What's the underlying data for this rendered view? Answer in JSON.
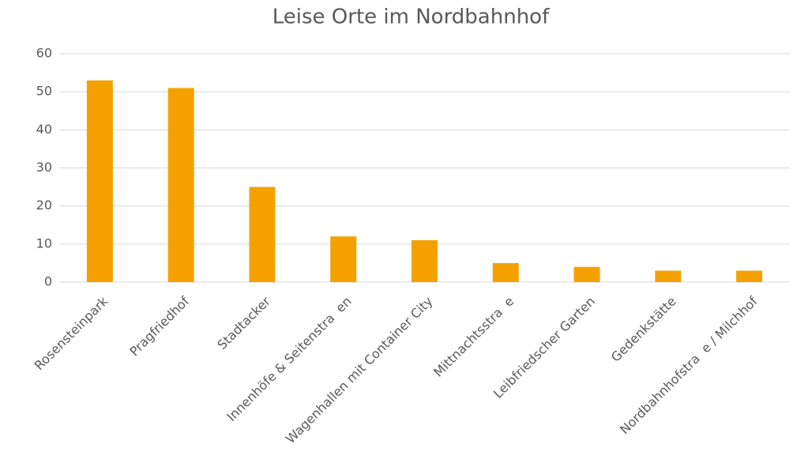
{
  "chart_data": {
    "type": "bar",
    "title": "Leise Orte im Nordbahnhof",
    "categories": [
      "Rosensteinpark",
      "Pragfriedhof",
      "Stadtacker",
      "Innenhöfe & Seitenstra  en",
      "Wagenhallen mit Container City",
      "Mittnachtsstra  e",
      "Leibfriedscher Garten",
      "Gedenkstätte",
      "Nordbahnhofstra  e / Milchhof"
    ],
    "values": [
      53,
      51,
      25,
      12,
      11,
      5,
      4,
      3,
      3
    ],
    "color": "#f4a100",
    "ylim": [
      0,
      60
    ],
    "yticks": [
      0,
      10,
      20,
      30,
      40,
      50,
      60
    ],
    "grid": true
  }
}
